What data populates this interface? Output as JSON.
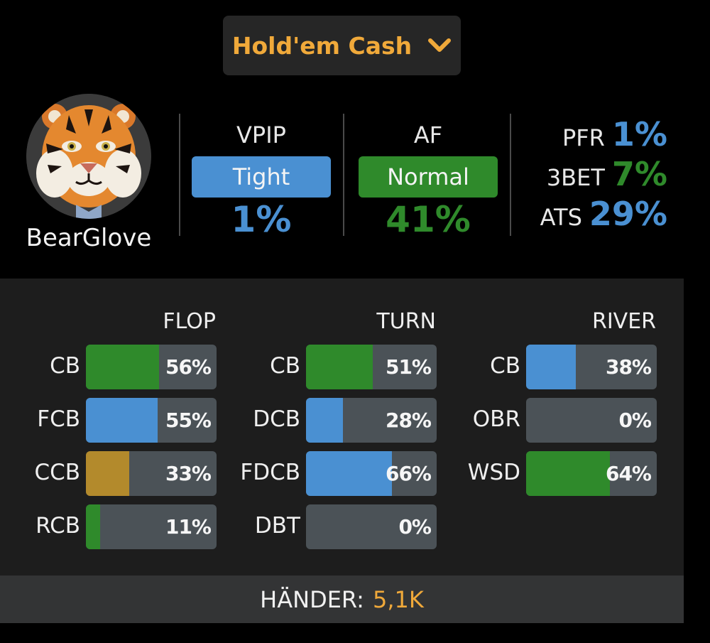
{
  "game_selector": {
    "label": "Hold'em Cash",
    "icon": "chevron-down-icon"
  },
  "player": {
    "name": "BearGlove",
    "avatar": "tiger-avatar"
  },
  "colors": {
    "blue": "#4a90d2",
    "green": "#2f8a2b",
    "gold": "#b38a2c",
    "orange": "#f0a93a",
    "track": "#4b5257"
  },
  "vpip": {
    "title": "VPIP",
    "badge": "Tight",
    "value": "1%"
  },
  "af": {
    "title": "AF",
    "badge": "Normal",
    "value": "41%"
  },
  "mini": [
    {
      "label": "PFR",
      "value": "1%",
      "color": "blue"
    },
    {
      "label": "3BET",
      "value": "7%",
      "color": "green"
    },
    {
      "label": "ATS",
      "value": "29%",
      "color": "blue"
    }
  ],
  "streets": [
    {
      "title": "FLOP",
      "rows": [
        {
          "label": "CB",
          "value": "56%",
          "fraction": 0.56,
          "color": "green"
        },
        {
          "label": "FCB",
          "value": "55%",
          "fraction": 0.55,
          "color": "blue"
        },
        {
          "label": "CCB",
          "value": "33%",
          "fraction": 0.33,
          "color": "gold"
        },
        {
          "label": "RCB",
          "value": "11%",
          "fraction": 0.11,
          "color": "green"
        }
      ]
    },
    {
      "title": "TURN",
      "rows": [
        {
          "label": "CB",
          "value": "51%",
          "fraction": 0.51,
          "color": "green"
        },
        {
          "label": "DCB",
          "value": "28%",
          "fraction": 0.28,
          "color": "blue"
        },
        {
          "label": "FDCB",
          "value": "66%",
          "fraction": 0.66,
          "color": "blue"
        },
        {
          "label": "DBT",
          "value": "0%",
          "fraction": 0,
          "color": "blue"
        }
      ]
    },
    {
      "title": "RIVER",
      "rows": [
        {
          "label": "CB",
          "value": "38%",
          "fraction": 0.38,
          "color": "blue"
        },
        {
          "label": "OBR",
          "value": "0%",
          "fraction": 0,
          "color": "blue"
        },
        {
          "label": "WSD",
          "value": "64%",
          "fraction": 0.64,
          "color": "green"
        }
      ]
    }
  ],
  "footer": {
    "label": "HÄNDER:",
    "value": "5,1K"
  }
}
